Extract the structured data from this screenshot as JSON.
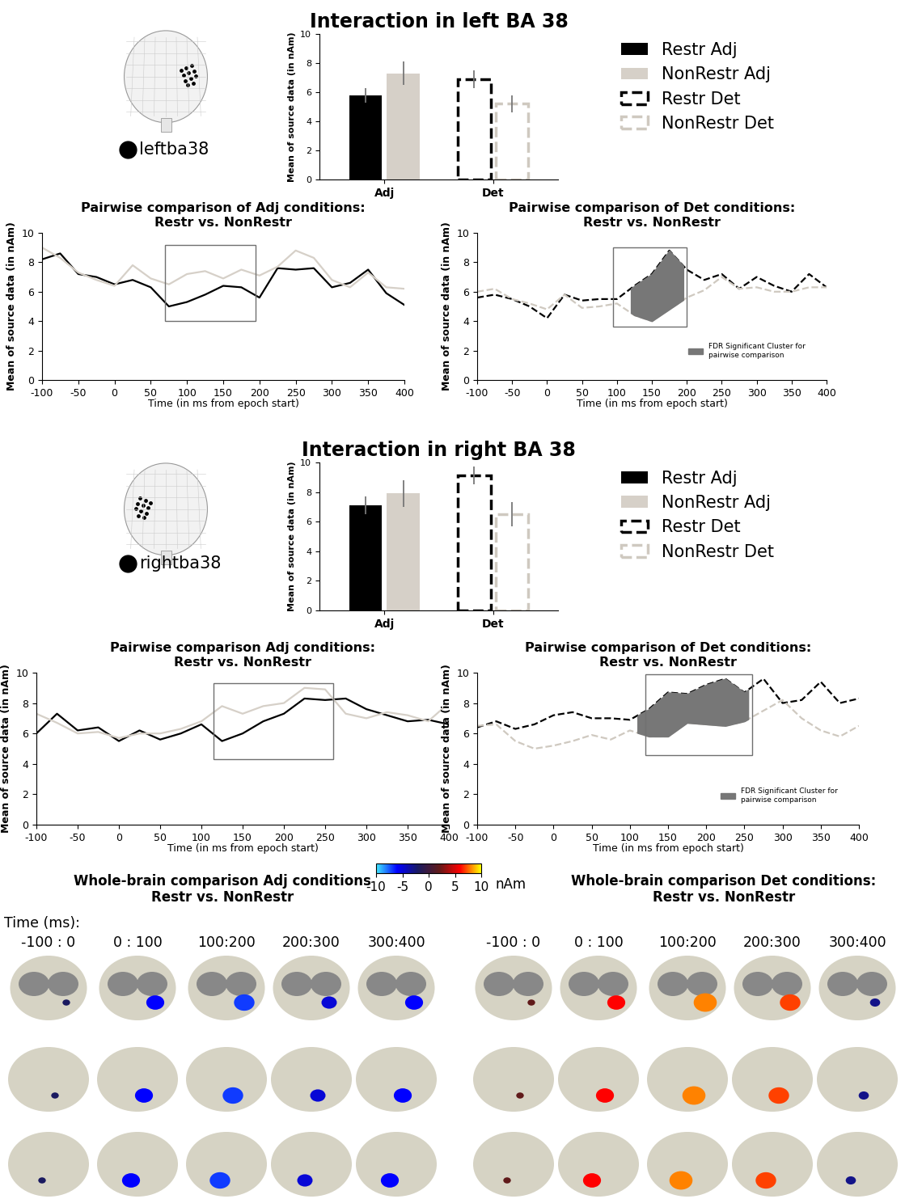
{
  "chart_data": [
    {
      "type": "bar",
      "title": "Interaction in left BA 38",
      "ylabel": "Mean of source data (in nAm)",
      "categories": [
        "Adj",
        "Det"
      ],
      "ylim": [
        0,
        10
      ],
      "yticks": [
        0,
        2,
        4,
        6,
        8,
        10
      ],
      "legend": "upper left",
      "series": [
        {
          "name": "Restr Adj",
          "color": "#000000",
          "line_style": "solid",
          "values": [
            5.8,
            null
          ],
          "errors": [
            0.5,
            null
          ]
        },
        {
          "name": "NonRestr Adj",
          "color": "#d6d0c8",
          "line_style": "solid",
          "values": [
            7.3,
            null
          ],
          "errors": [
            0.8,
            null
          ]
        },
        {
          "name": "Restr Det",
          "color": "#000000",
          "line_style": "dashed",
          "values": [
            null,
            6.9
          ],
          "errors": [
            null,
            0.6
          ]
        },
        {
          "name": "NonRestr Det",
          "color": "#cfc9c0",
          "line_style": "dashed",
          "values": [
            null,
            5.2
          ],
          "errors": [
            null,
            0.6
          ]
        }
      ]
    },
    {
      "type": "line",
      "title": "Pairwise comparison of Adj conditions:\nRestr vs. NonRestr",
      "xlabel": "Time (in ms from epoch start)",
      "ylabel": "Mean of source data (in nAm)",
      "xlim": [
        -100,
        400
      ],
      "xticks": [
        -100,
        -50,
        0,
        50,
        100,
        150,
        200,
        250,
        300,
        350,
        400
      ],
      "ylim": [
        0,
        10
      ],
      "yticks": [
        0,
        2,
        4,
        6,
        8,
        10
      ],
      "x": [
        -100,
        -75,
        -50,
        -25,
        0,
        25,
        50,
        75,
        100,
        125,
        150,
        175,
        200,
        225,
        250,
        275,
        300,
        325,
        350,
        375,
        400
      ],
      "box": {
        "x": [
          70,
          195
        ],
        "y": [
          4,
          9.2
        ]
      },
      "series": [
        {
          "color": "#000000",
          "line_style": "solid",
          "values": [
            8.2,
            8.6,
            7.2,
            7.0,
            6.5,
            6.8,
            6.3,
            5.0,
            5.3,
            5.8,
            6.4,
            6.3,
            5.6,
            7.6,
            7.5,
            7.6,
            6.3,
            6.6,
            7.5,
            5.9,
            5.1
          ]
        },
        {
          "color": "#d6d0c8",
          "line_style": "solid",
          "values": [
            9.0,
            8.3,
            7.3,
            6.8,
            6.4,
            7.8,
            6.9,
            6.5,
            7.2,
            7.4,
            6.9,
            7.5,
            7.1,
            7.7,
            8.8,
            8.3,
            6.8,
            6.3,
            7.3,
            6.3,
            6.2
          ]
        }
      ]
    },
    {
      "type": "line",
      "title": "Pairwise comparison of Det conditions:\nRestr vs. NonRestr",
      "xlabel": "Time (in ms from epoch start)",
      "ylabel": "Mean of source data (in nAm)",
      "xlim": [
        -100,
        400
      ],
      "xticks": [
        -100,
        -50,
        0,
        50,
        100,
        150,
        200,
        250,
        300,
        350,
        400
      ],
      "ylim": [
        0,
        10
      ],
      "yticks": [
        0,
        2,
        4,
        6,
        8,
        10
      ],
      "legend": "lower right",
      "x": [
        -100,
        -75,
        -50,
        -25,
        0,
        25,
        50,
        75,
        100,
        125,
        150,
        175,
        200,
        225,
        250,
        275,
        300,
        325,
        350,
        375,
        400
      ],
      "box": {
        "x": [
          95,
          200
        ],
        "y": [
          3.6,
          9
        ]
      },
      "cluster": {
        "x": [
          120,
          195
        ],
        "label": "FDR Significant Cluster for\npairwise comparison"
      },
      "series": [
        {
          "color": "#000000",
          "line_style": "dashed",
          "values": [
            5.6,
            5.8,
            5.5,
            5.0,
            4.2,
            5.8,
            5.4,
            5.5,
            5.5,
            6.4,
            7.2,
            8.8,
            7.5,
            6.8,
            7.2,
            6.2,
            7.0,
            6.4,
            6.0,
            7.2,
            6.3
          ]
        },
        {
          "color": "#cfc9c0",
          "line_style": "dashed",
          "values": [
            6.0,
            6.2,
            5.5,
            5.2,
            4.8,
            5.8,
            4.9,
            5.0,
            5.2,
            4.4,
            4.0,
            4.8,
            5.6,
            6.1,
            7.0,
            6.2,
            6.3,
            6.0,
            6.0,
            6.3,
            6.3
          ]
        }
      ]
    },
    {
      "type": "bar",
      "title": "Interaction in right BA 38",
      "ylabel": "Mean of source data (in nAm)",
      "categories": [
        "Adj",
        "Det"
      ],
      "ylim": [
        0,
        10
      ],
      "yticks": [
        0,
        2,
        4,
        6,
        8,
        10
      ],
      "legend": "upper left",
      "series": [
        {
          "name": "Restr Adj",
          "color": "#000000",
          "line_style": "solid",
          "values": [
            7.1,
            null
          ],
          "errors": [
            0.6,
            null
          ]
        },
        {
          "name": "NonRestr Adj",
          "color": "#d6d0c8",
          "line_style": "solid",
          "values": [
            7.9,
            null
          ],
          "errors": [
            0.9,
            null
          ]
        },
        {
          "name": "Restr Det",
          "color": "#000000",
          "line_style": "dashed",
          "values": [
            null,
            9.1
          ],
          "errors": [
            null,
            0.6
          ]
        },
        {
          "name": "NonRestr Det",
          "color": "#cfc9c0",
          "line_style": "dashed",
          "values": [
            null,
            6.5
          ],
          "errors": [
            null,
            0.8
          ]
        }
      ]
    },
    {
      "type": "line",
      "title": "Pairwise comparison Adj conditions:\nRestr vs. NonRestr",
      "xlabel": "Time (in ms from epoch start)",
      "ylabel": "Mean of source data (in nAm)",
      "xlim": [
        -100,
        400
      ],
      "xticks": [
        -100,
        -50,
        0,
        50,
        100,
        150,
        200,
        250,
        300,
        350,
        400
      ],
      "ylim": [
        0,
        10
      ],
      "yticks": [
        0,
        2,
        4,
        6,
        8,
        10
      ],
      "x": [
        -100,
        -75,
        -50,
        -25,
        0,
        25,
        50,
        75,
        100,
        125,
        150,
        175,
        200,
        225,
        250,
        275,
        300,
        325,
        350,
        375,
        400
      ],
      "box": {
        "x": [
          115,
          260
        ],
        "y": [
          4.3,
          9.3
        ]
      },
      "series": [
        {
          "color": "#000000",
          "line_style": "solid",
          "values": [
            6.0,
            7.3,
            6.2,
            6.4,
            5.5,
            6.2,
            5.6,
            6.0,
            6.6,
            5.5,
            6.0,
            6.8,
            7.3,
            8.3,
            8.2,
            8.3,
            7.6,
            7.2,
            6.8,
            6.9,
            6.6
          ]
        },
        {
          "color": "#d6d0c8",
          "line_style": "solid",
          "values": [
            7.3,
            6.7,
            6.0,
            6.1,
            5.7,
            6.0,
            6.0,
            6.3,
            6.8,
            7.8,
            7.3,
            7.8,
            8.0,
            9.0,
            8.9,
            7.3,
            7.0,
            7.4,
            7.2,
            6.8,
            8.0
          ]
        }
      ]
    },
    {
      "type": "line",
      "title": "Pairwise comparison of Det conditions:\nRestr vs. NonRestr",
      "xlabel": "Time (in ms from epoch start)",
      "ylabel": "Mean of source data (in nAm)",
      "xlim": [
        -100,
        400
      ],
      "xticks": [
        -100,
        -50,
        0,
        50,
        100,
        150,
        200,
        250,
        300,
        350,
        400
      ],
      "ylim": [
        0,
        10
      ],
      "yticks": [
        0,
        2,
        4,
        6,
        8,
        10
      ],
      "legend": "lower right",
      "x": [
        -100,
        -75,
        -50,
        -25,
        0,
        25,
        50,
        75,
        100,
        125,
        150,
        175,
        200,
        225,
        250,
        275,
        300,
        325,
        350,
        375,
        400
      ],
      "box": {
        "x": [
          120,
          260
        ],
        "y": [
          4.6,
          9.9
        ]
      },
      "cluster": {
        "x": [
          110,
          255
        ],
        "label": "FDR Significant Cluster for\npairwise comparison"
      },
      "series": [
        {
          "color": "#000000",
          "line_style": "dashed",
          "values": [
            6.4,
            6.8,
            6.3,
            6.6,
            7.2,
            7.4,
            7.0,
            7.0,
            6.9,
            7.6,
            8.7,
            8.6,
            9.2,
            9.6,
            8.7,
            9.6,
            8.0,
            8.2,
            9.4,
            8.0,
            8.3
          ]
        },
        {
          "color": "#cfc9c0",
          "line_style": "dashed",
          "values": [
            6.5,
            6.6,
            5.5,
            5.0,
            5.2,
            5.5,
            5.9,
            5.6,
            6.2,
            5.8,
            5.8,
            6.7,
            6.6,
            6.5,
            6.8,
            7.5,
            8.2,
            7.0,
            6.2,
            5.8,
            6.5
          ]
        }
      ]
    }
  ],
  "region_labels": [
    "leftba38",
    "rightba38"
  ],
  "whole_brain": {
    "colorbar": {
      "range": [
        -10,
        10
      ],
      "ticks": [
        -10,
        -5,
        0,
        5,
        10
      ],
      "label": "nAm"
    },
    "time_label": "Time (ms):",
    "windows": [
      "-100 : 0",
      "0 : 100",
      "100:200",
      "200:300",
      "300:400"
    ],
    "comparisons": [
      {
        "title": "Whole-brain comparison Adj conditions\nRestr vs. NonRestr",
        "values": [
          -2,
          -6,
          -7,
          -5,
          -6
        ]
      },
      {
        "title": "Whole-brain comparison Det conditions:\nRestr vs. NonRestr",
        "values": [
          2,
          6,
          8,
          7,
          -3
        ]
      }
    ]
  }
}
